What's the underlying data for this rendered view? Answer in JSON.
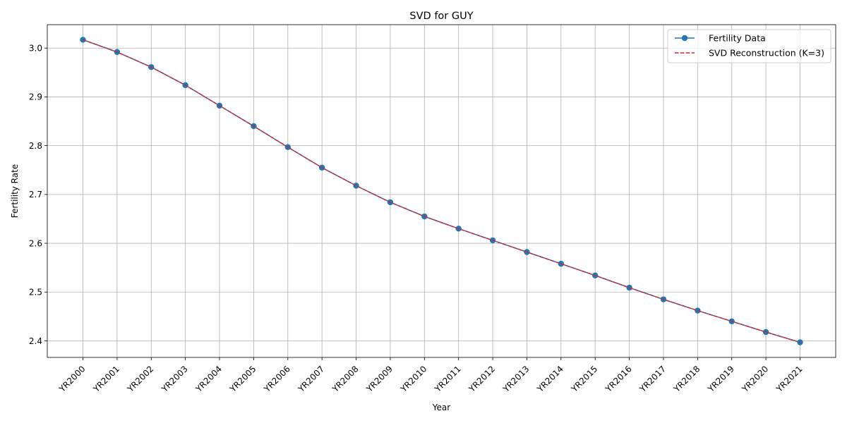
{
  "chart_data": {
    "type": "line",
    "title": "SVD for GUY",
    "xlabel": "Year",
    "ylabel": "Fertility Rate",
    "categories": [
      "YR2000",
      "YR2001",
      "YR2002",
      "YR2003",
      "YR2004",
      "YR2005",
      "YR2006",
      "YR2007",
      "YR2008",
      "YR2009",
      "YR2010",
      "YR2011",
      "YR2012",
      "YR2013",
      "YR2014",
      "YR2015",
      "YR2016",
      "YR2017",
      "YR2018",
      "YR2019",
      "YR2020",
      "YR2021"
    ],
    "series": [
      {
        "name": "Fertility Data",
        "color": "#1f77b4",
        "style": "solid",
        "marker": "circle",
        "values": [
          3.017,
          2.992,
          2.961,
          2.924,
          2.882,
          2.84,
          2.797,
          2.755,
          2.718,
          2.684,
          2.655,
          2.63,
          2.606,
          2.582,
          2.558,
          2.534,
          2.509,
          2.485,
          2.462,
          2.44,
          2.418,
          2.397
        ]
      },
      {
        "name": "SVD Reconstruction (K=3)",
        "color": "#d62728",
        "style": "dashed",
        "marker": "none",
        "values": [
          3.017,
          2.992,
          2.961,
          2.924,
          2.882,
          2.84,
          2.797,
          2.755,
          2.718,
          2.684,
          2.655,
          2.63,
          2.606,
          2.582,
          2.558,
          2.534,
          2.509,
          2.485,
          2.462,
          2.44,
          2.418,
          2.397
        ]
      }
    ],
    "yticks": [
      2.4,
      2.5,
      2.6,
      2.7,
      2.8,
      2.9,
      3.0
    ],
    "ytick_labels": [
      "2.4",
      "2.5",
      "2.6",
      "2.7",
      "2.8",
      "2.9",
      "3.0"
    ],
    "ylim": [
      2.366,
      3.048
    ],
    "grid": true,
    "legend_position": "top-right"
  }
}
